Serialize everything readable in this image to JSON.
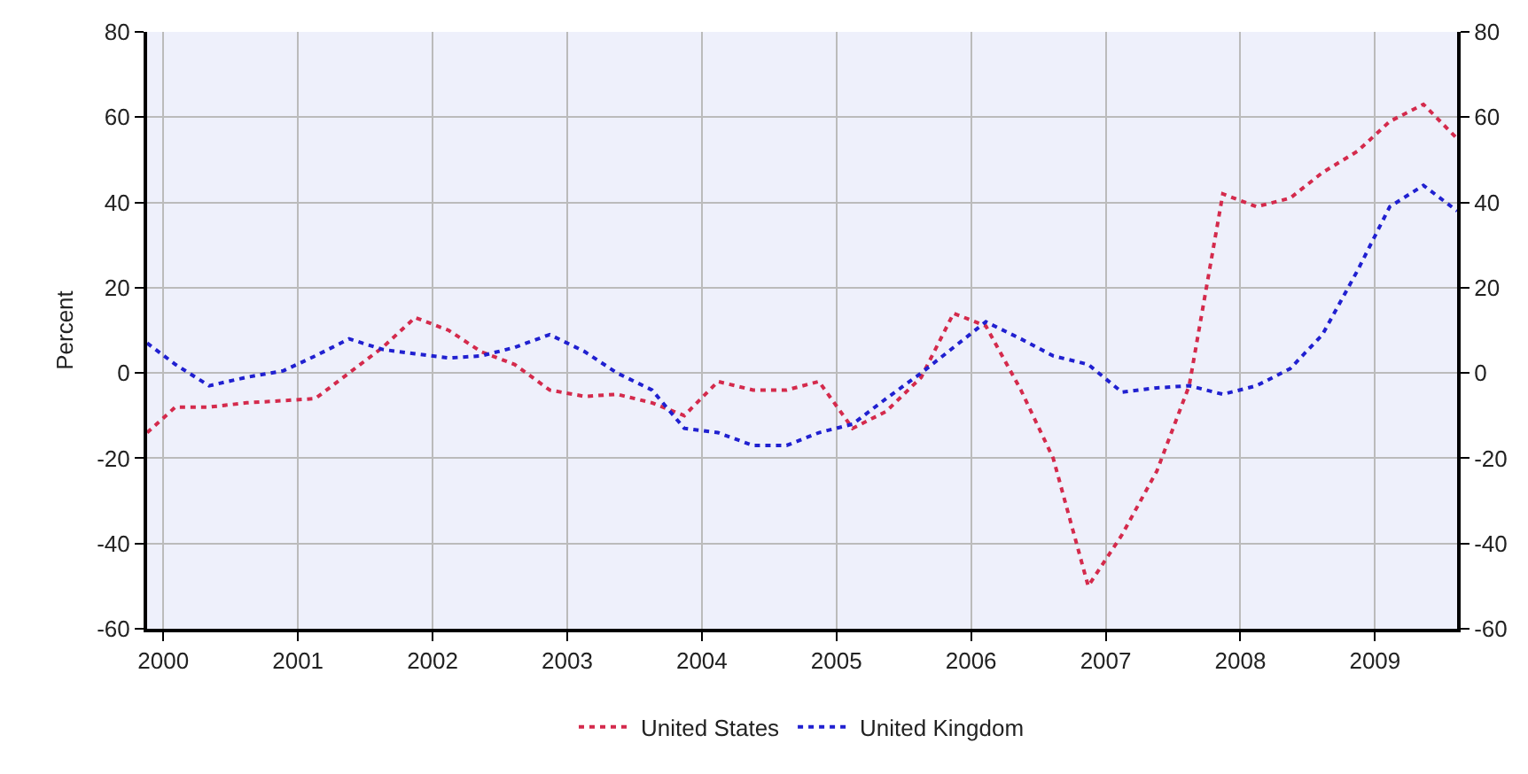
{
  "chart_data": {
    "type": "line",
    "ylabel": "Percent",
    "x": [
      1999.88,
      2000.09,
      2000.34,
      2000.62,
      2000.89,
      2001.13,
      2001.38,
      2001.63,
      2001.87,
      2002.12,
      2002.36,
      2002.61,
      2002.87,
      2003.13,
      2003.37,
      2003.63,
      2003.87,
      2004.12,
      2004.38,
      2004.63,
      2004.87,
      2005.12,
      2005.37,
      2005.63,
      2005.87,
      2006.11,
      2006.37,
      2006.61,
      2006.87,
      2007.12,
      2007.38,
      2007.62,
      2007.87,
      2008.12,
      2008.37,
      2008.61,
      2008.87,
      2009.11,
      2009.36,
      2009.61
    ],
    "series": [
      {
        "name": "United States",
        "color": "#d42a4c",
        "values": [
          -14,
          -8,
          -8,
          -7,
          -6.5,
          -6,
          0,
          6,
          13,
          10,
          5,
          2,
          -4,
          -5.5,
          -5,
          -7,
          -10,
          -2,
          -4,
          -4,
          -2,
          -13,
          -9,
          -1,
          14,
          11,
          -4,
          -20,
          -50,
          -38,
          -23,
          -3,
          42,
          39,
          41,
          47,
          52,
          59,
          63,
          55
        ]
      },
      {
        "name": "United Kingdom",
        "color": "#2020d0",
        "values": [
          7,
          2,
          -3,
          -1,
          0.5,
          4,
          8,
          5.5,
          4.5,
          3.5,
          4,
          6,
          9,
          5,
          0,
          -4,
          -13,
          -14,
          -17,
          -17,
          -14,
          -12,
          -6,
          0,
          6,
          12,
          8,
          4,
          2,
          -4.5,
          -3.5,
          -3,
          -5,
          -3,
          1,
          9,
          24,
          39,
          44,
          38
        ]
      }
    ],
    "xlim": [
      1999.88,
      2009.61
    ],
    "xticks": [
      2000,
      2001,
      2002,
      2003,
      2004,
      2005,
      2006,
      2007,
      2008,
      2009
    ],
    "ylim": [
      -60,
      80
    ],
    "yticks": [
      -60,
      -40,
      -20,
      0,
      20,
      40,
      60,
      80
    ],
    "y2lim": [
      -60,
      80
    ],
    "y2ticks": [
      -60,
      -40,
      -20,
      0,
      20,
      40,
      60,
      80
    ],
    "grid": true,
    "legend": "bottom",
    "line_style": "dotted",
    "marker": "none"
  }
}
